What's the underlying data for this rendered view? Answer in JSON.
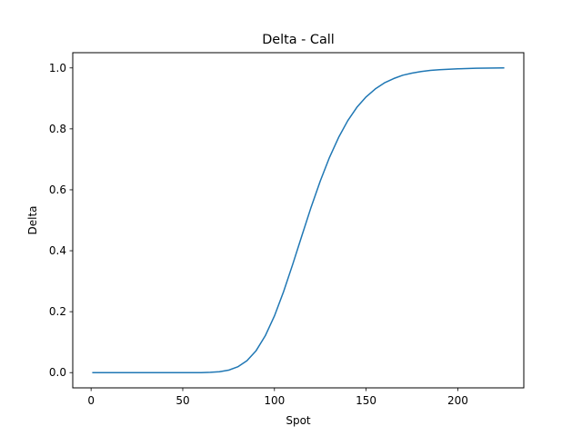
{
  "chart_data": {
    "type": "line",
    "title": "Delta - Call",
    "xlabel": "Spot",
    "ylabel": "Delta",
    "xlim": [
      -10,
      236
    ],
    "ylim": [
      -0.05,
      1.05
    ],
    "xticks": [
      0,
      50,
      100,
      150,
      200
    ],
    "yticks": [
      0.0,
      0.2,
      0.4,
      0.6,
      0.8,
      1.0
    ],
    "xtick_labels": [
      "0",
      "50",
      "100",
      "150",
      "200"
    ],
    "ytick_labels": [
      "0.0",
      "0.2",
      "0.4",
      "0.6",
      "0.8",
      "1.0"
    ],
    "grid": false,
    "series": [
      {
        "color": "#1f77b4",
        "x": [
          1,
          10,
          20,
          30,
          40,
          50,
          60,
          65,
          70,
          75,
          80,
          85,
          90,
          95,
          100,
          105,
          110,
          115,
          120,
          125,
          130,
          135,
          140,
          145,
          150,
          155,
          160,
          165,
          170,
          175,
          180,
          185,
          190,
          200,
          210,
          225
        ],
        "y": [
          0.0,
          0.0,
          0.0,
          0.0,
          0.0,
          0.0,
          0.0,
          0.001,
          0.003,
          0.008,
          0.019,
          0.039,
          0.072,
          0.121,
          0.186,
          0.266,
          0.356,
          0.45,
          0.543,
          0.629,
          0.706,
          0.772,
          0.827,
          0.871,
          0.905,
          0.931,
          0.951,
          0.965,
          0.976,
          0.983,
          0.988,
          0.992,
          0.994,
          0.997,
          0.999,
          1.0
        ]
      }
    ]
  }
}
